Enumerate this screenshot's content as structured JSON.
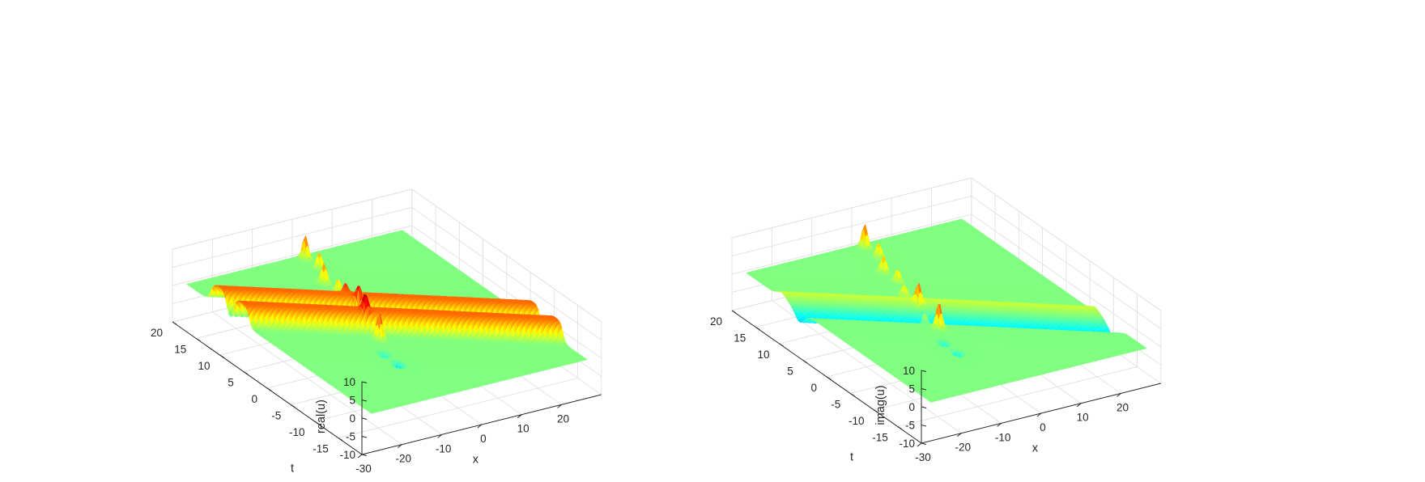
{
  "colors": {
    "background": "#ffffff",
    "grid": "#e3e3e3",
    "axis": "#262626",
    "colormap": "jet"
  },
  "chart_data": [
    {
      "type": "surface",
      "xlabel": "x",
      "ylabel": "t",
      "zlabel": "real(u)",
      "xlim": [
        -30,
        30
      ],
      "ylim": [
        -20,
        20
      ],
      "zlim": [
        -10,
        10
      ],
      "x_ticks": [
        -30,
        -20,
        -10,
        0,
        10,
        20
      ],
      "y_ticks": [
        -15,
        -10,
        -5,
        0,
        5,
        10,
        15,
        20
      ],
      "z_ticks": [
        -10,
        -5,
        0,
        5,
        10
      ],
      "x_tick_labels": [
        "-30",
        "-20",
        "-10",
        "0",
        "10",
        "20"
      ],
      "y_tick_labels": [
        "-15",
        "-10",
        "-5",
        "0",
        "5",
        "10",
        "15",
        "20"
      ],
      "z_tick_labels": [
        "-10",
        "-5",
        "0",
        "5",
        "10"
      ],
      "features": {
        "kink_wall_height": 5.5,
        "peaks": [
          {
            "x": 1.5,
            "t": 15.5,
            "z": 4.5
          },
          {
            "x": 1.5,
            "t": 18.5,
            "z": 6.5
          },
          {
            "x": -1.5,
            "t": 9,
            "z": 4
          },
          {
            "x": -1.5,
            "t": 12,
            "z": 5.5
          },
          {
            "x": -4,
            "t": 2.5,
            "z": 5
          },
          {
            "x": -4,
            "t": 5.5,
            "z": 3.5
          },
          {
            "x": -6,
            "t": -3.5,
            "z": 7.5
          },
          {
            "x": -6,
            "t": -0.5,
            "z": 4.5
          }
        ],
        "troughs": [
          {
            "x": -9,
            "t": -10,
            "z": -9
          },
          {
            "x": -9,
            "t": -7,
            "z": -4
          }
        ],
        "grid_on": true,
        "view": "3d-perspective"
      }
    },
    {
      "type": "surface",
      "xlabel": "x",
      "ylabel": "t",
      "zlabel": "imag(u)",
      "xlim": [
        -30,
        30
      ],
      "ylim": [
        -20,
        20
      ],
      "zlim": [
        -10,
        10
      ],
      "x_ticks": [
        -30,
        -20,
        -10,
        0,
        10,
        20
      ],
      "y_ticks": [
        -15,
        -10,
        -5,
        0,
        5,
        10,
        15,
        20
      ],
      "z_ticks": [
        -10,
        -5,
        0,
        5,
        10
      ],
      "x_tick_labels": [
        "-30",
        "-20",
        "-10",
        "0",
        "10",
        "20"
      ],
      "y_tick_labels": [
        "-15",
        "-10",
        "-5",
        "0",
        "5",
        "10",
        "15",
        "20"
      ],
      "z_tick_labels": [
        "-10",
        "-5",
        "0",
        "5",
        "10"
      ],
      "features": {
        "kink_wall_height": 2.5,
        "peaks": [
          {
            "x": 1.5,
            "t": 15.5,
            "z": 4
          },
          {
            "x": 1.5,
            "t": 18.5,
            "z": 6.5
          },
          {
            "x": -1.5,
            "t": 9,
            "z": 3.5
          },
          {
            "x": -1.5,
            "t": 12,
            "z": 4.5
          },
          {
            "x": -4,
            "t": 2.5,
            "z": 5.5
          },
          {
            "x": -4,
            "t": 5.5,
            "z": 3
          },
          {
            "x": -6,
            "t": -3.5,
            "z": 7
          },
          {
            "x": -6,
            "t": -0.5,
            "z": 4
          }
        ],
        "troughs": [
          {
            "x": -9,
            "t": -10,
            "z": -6
          },
          {
            "x": -9,
            "t": -7,
            "z": -5
          }
        ],
        "grid_on": true,
        "view": "3d-perspective"
      }
    }
  ]
}
